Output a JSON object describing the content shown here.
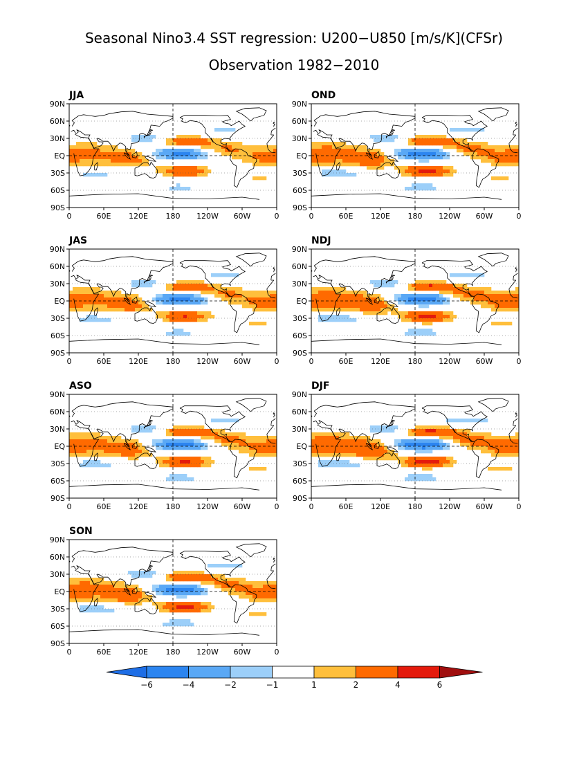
{
  "title": "Seasonal Nino3.4 SST regression: U200−U850 [m/s/K](CFSr)",
  "subtitle": "Observation 1982−2010",
  "lat_labels": [
    "90N",
    "60N",
    "30N",
    "EQ",
    "30S",
    "60S",
    "90S"
  ],
  "lon_labels": [
    "0",
    "60E",
    "120E",
    "180",
    "120W",
    "60W",
    "0"
  ],
  "panels": [
    {
      "label": "JJA",
      "strength": 0.85
    },
    {
      "label": "OND",
      "strength": 1.0
    },
    {
      "label": "JAS",
      "strength": 0.9
    },
    {
      "label": "NDJ",
      "strength": 1.05
    },
    {
      "label": "ASO",
      "strength": 0.95
    },
    {
      "label": "DJF",
      "strength": 1.1
    },
    {
      "label": "SON",
      "strength": 1.0
    }
  ],
  "colorbar": {
    "levels": [
      -6,
      -4,
      -2,
      -1,
      1,
      2,
      4,
      6
    ],
    "labels": [
      "−6",
      "−4",
      "−2",
      "−1",
      "1",
      "2",
      "4",
      "6"
    ],
    "colors": [
      "#1e6ee6",
      "#2c85f0",
      "#5aa8f5",
      "#9ccff9",
      "#ffffff",
      "#ffbf3c",
      "#ff6a00",
      "#e41a0c",
      "#a00e0e",
      "#a00e0e"
    ],
    "under_color": "#1e6ee6",
    "over_color": "#a00e0e"
  }
}
